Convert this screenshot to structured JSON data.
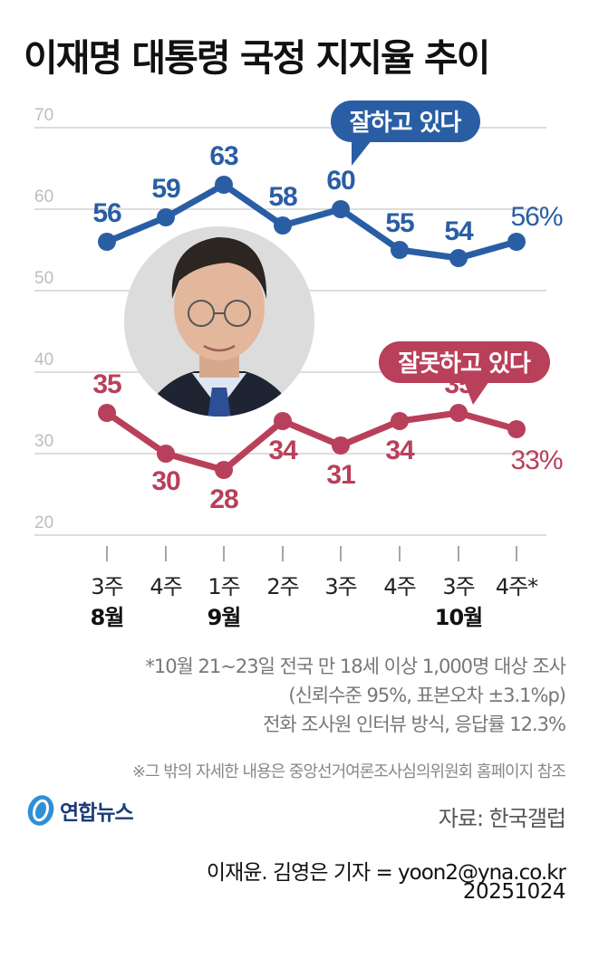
{
  "header": {
    "title": "이재명 대통령 국정 지지율 추이"
  },
  "colors": {
    "positive": "#2a5ea4",
    "negative": "#b9405a",
    "grid": "#dddddd",
    "axis_text": "#bdbdbd"
  },
  "chart_data": {
    "type": "line",
    "title": "이재명 대통령 국정 지지율 추이",
    "xlabel": "",
    "ylabel": "",
    "ylim": [
      20,
      70
    ],
    "yticks": [
      70,
      60,
      50,
      40,
      30,
      20
    ],
    "grid": true,
    "categories": [
      "8월 3주",
      "8월 4주",
      "9월 1주",
      "9월 2주",
      "9월 3주",
      "9월 4주",
      "10월 3주",
      "10월 4주*"
    ],
    "series": [
      {
        "name": "잘하고 있다",
        "color": "#2a5ea4",
        "values": [
          56,
          59,
          63,
          58,
          60,
          55,
          54,
          56
        ]
      },
      {
        "name": "잘못하고 있다",
        "color": "#b9405a",
        "values": [
          35,
          30,
          28,
          34,
          31,
          34,
          35,
          33
        ]
      }
    ],
    "value_suffix_last": "%"
  },
  "axis": {
    "weeks": [
      "3주",
      "4주",
      "1주",
      "2주",
      "3주",
      "4주",
      "3주",
      "4주*"
    ],
    "months": [
      {
        "label": "8월",
        "index": 0
      },
      {
        "label": "9월",
        "index": 2
      },
      {
        "label": "10월",
        "index": 6
      }
    ]
  },
  "legend": {
    "positive": "잘하고 있다",
    "negative": "잘못하고 있다"
  },
  "photo": {
    "alt": "이재명 대통령 사진"
  },
  "notes": {
    "line1": "*10월 21~23일 전국 만 18세 이상 1,000명 대상 조사",
    "line2": "(신뢰수준 95%, 표본오차 ±3.1%p)",
    "line3": "전화 조사원 인터뷰 방식, 응답률 12.3%",
    "line4": "※그 밖의 자세한 내용은 중앙선거여론조사심의위원회 홈페이지 참조"
  },
  "footer": {
    "logo": "연합뉴스",
    "source": "자료: 한국갤럽",
    "byline": "이재윤. 김영은 기자 = yoon2@yna.co.kr",
    "date": "20251024"
  }
}
